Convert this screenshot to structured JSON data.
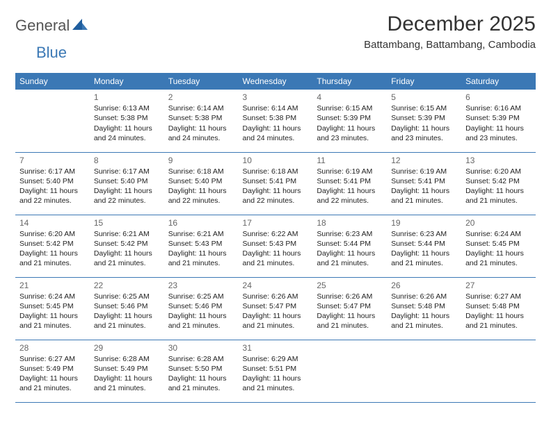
{
  "logo": {
    "part1": "General",
    "part2": "Blue"
  },
  "title": "December 2025",
  "subtitle": "Battambang, Battambang, Cambodia",
  "colors": {
    "header_bg": "#3b78b5",
    "header_text": "#ffffff",
    "border": "#3b78b5",
    "title_text": "#333333",
    "body_text": "#222222",
    "daynum_text": "#666666",
    "logo_gray": "#555555",
    "logo_blue": "#3b78b5",
    "page_bg": "#ffffff"
  },
  "weekdays": [
    "Sunday",
    "Monday",
    "Tuesday",
    "Wednesday",
    "Thursday",
    "Friday",
    "Saturday"
  ],
  "weeks": [
    [
      null,
      {
        "n": "1",
        "sr": "Sunrise: 6:13 AM",
        "ss": "Sunset: 5:38 PM",
        "dl1": "Daylight: 11 hours",
        "dl2": "and 24 minutes."
      },
      {
        "n": "2",
        "sr": "Sunrise: 6:14 AM",
        "ss": "Sunset: 5:38 PM",
        "dl1": "Daylight: 11 hours",
        "dl2": "and 24 minutes."
      },
      {
        "n": "3",
        "sr": "Sunrise: 6:14 AM",
        "ss": "Sunset: 5:38 PM",
        "dl1": "Daylight: 11 hours",
        "dl2": "and 24 minutes."
      },
      {
        "n": "4",
        "sr": "Sunrise: 6:15 AM",
        "ss": "Sunset: 5:39 PM",
        "dl1": "Daylight: 11 hours",
        "dl2": "and 23 minutes."
      },
      {
        "n": "5",
        "sr": "Sunrise: 6:15 AM",
        "ss": "Sunset: 5:39 PM",
        "dl1": "Daylight: 11 hours",
        "dl2": "and 23 minutes."
      },
      {
        "n": "6",
        "sr": "Sunrise: 6:16 AM",
        "ss": "Sunset: 5:39 PM",
        "dl1": "Daylight: 11 hours",
        "dl2": "and 23 minutes."
      }
    ],
    [
      {
        "n": "7",
        "sr": "Sunrise: 6:17 AM",
        "ss": "Sunset: 5:40 PM",
        "dl1": "Daylight: 11 hours",
        "dl2": "and 22 minutes."
      },
      {
        "n": "8",
        "sr": "Sunrise: 6:17 AM",
        "ss": "Sunset: 5:40 PM",
        "dl1": "Daylight: 11 hours",
        "dl2": "and 22 minutes."
      },
      {
        "n": "9",
        "sr": "Sunrise: 6:18 AM",
        "ss": "Sunset: 5:40 PM",
        "dl1": "Daylight: 11 hours",
        "dl2": "and 22 minutes."
      },
      {
        "n": "10",
        "sr": "Sunrise: 6:18 AM",
        "ss": "Sunset: 5:41 PM",
        "dl1": "Daylight: 11 hours",
        "dl2": "and 22 minutes."
      },
      {
        "n": "11",
        "sr": "Sunrise: 6:19 AM",
        "ss": "Sunset: 5:41 PM",
        "dl1": "Daylight: 11 hours",
        "dl2": "and 22 minutes."
      },
      {
        "n": "12",
        "sr": "Sunrise: 6:19 AM",
        "ss": "Sunset: 5:41 PM",
        "dl1": "Daylight: 11 hours",
        "dl2": "and 21 minutes."
      },
      {
        "n": "13",
        "sr": "Sunrise: 6:20 AM",
        "ss": "Sunset: 5:42 PM",
        "dl1": "Daylight: 11 hours",
        "dl2": "and 21 minutes."
      }
    ],
    [
      {
        "n": "14",
        "sr": "Sunrise: 6:20 AM",
        "ss": "Sunset: 5:42 PM",
        "dl1": "Daylight: 11 hours",
        "dl2": "and 21 minutes."
      },
      {
        "n": "15",
        "sr": "Sunrise: 6:21 AM",
        "ss": "Sunset: 5:42 PM",
        "dl1": "Daylight: 11 hours",
        "dl2": "and 21 minutes."
      },
      {
        "n": "16",
        "sr": "Sunrise: 6:21 AM",
        "ss": "Sunset: 5:43 PM",
        "dl1": "Daylight: 11 hours",
        "dl2": "and 21 minutes."
      },
      {
        "n": "17",
        "sr": "Sunrise: 6:22 AM",
        "ss": "Sunset: 5:43 PM",
        "dl1": "Daylight: 11 hours",
        "dl2": "and 21 minutes."
      },
      {
        "n": "18",
        "sr": "Sunrise: 6:23 AM",
        "ss": "Sunset: 5:44 PM",
        "dl1": "Daylight: 11 hours",
        "dl2": "and 21 minutes."
      },
      {
        "n": "19",
        "sr": "Sunrise: 6:23 AM",
        "ss": "Sunset: 5:44 PM",
        "dl1": "Daylight: 11 hours",
        "dl2": "and 21 minutes."
      },
      {
        "n": "20",
        "sr": "Sunrise: 6:24 AM",
        "ss": "Sunset: 5:45 PM",
        "dl1": "Daylight: 11 hours",
        "dl2": "and 21 minutes."
      }
    ],
    [
      {
        "n": "21",
        "sr": "Sunrise: 6:24 AM",
        "ss": "Sunset: 5:45 PM",
        "dl1": "Daylight: 11 hours",
        "dl2": "and 21 minutes."
      },
      {
        "n": "22",
        "sr": "Sunrise: 6:25 AM",
        "ss": "Sunset: 5:46 PM",
        "dl1": "Daylight: 11 hours",
        "dl2": "and 21 minutes."
      },
      {
        "n": "23",
        "sr": "Sunrise: 6:25 AM",
        "ss": "Sunset: 5:46 PM",
        "dl1": "Daylight: 11 hours",
        "dl2": "and 21 minutes."
      },
      {
        "n": "24",
        "sr": "Sunrise: 6:26 AM",
        "ss": "Sunset: 5:47 PM",
        "dl1": "Daylight: 11 hours",
        "dl2": "and 21 minutes."
      },
      {
        "n": "25",
        "sr": "Sunrise: 6:26 AM",
        "ss": "Sunset: 5:47 PM",
        "dl1": "Daylight: 11 hours",
        "dl2": "and 21 minutes."
      },
      {
        "n": "26",
        "sr": "Sunrise: 6:26 AM",
        "ss": "Sunset: 5:48 PM",
        "dl1": "Daylight: 11 hours",
        "dl2": "and 21 minutes."
      },
      {
        "n": "27",
        "sr": "Sunrise: 6:27 AM",
        "ss": "Sunset: 5:48 PM",
        "dl1": "Daylight: 11 hours",
        "dl2": "and 21 minutes."
      }
    ],
    [
      {
        "n": "28",
        "sr": "Sunrise: 6:27 AM",
        "ss": "Sunset: 5:49 PM",
        "dl1": "Daylight: 11 hours",
        "dl2": "and 21 minutes."
      },
      {
        "n": "29",
        "sr": "Sunrise: 6:28 AM",
        "ss": "Sunset: 5:49 PM",
        "dl1": "Daylight: 11 hours",
        "dl2": "and 21 minutes."
      },
      {
        "n": "30",
        "sr": "Sunrise: 6:28 AM",
        "ss": "Sunset: 5:50 PM",
        "dl1": "Daylight: 11 hours",
        "dl2": "and 21 minutes."
      },
      {
        "n": "31",
        "sr": "Sunrise: 6:29 AM",
        "ss": "Sunset: 5:51 PM",
        "dl1": "Daylight: 11 hours",
        "dl2": "and 21 minutes."
      },
      null,
      null,
      null
    ]
  ]
}
